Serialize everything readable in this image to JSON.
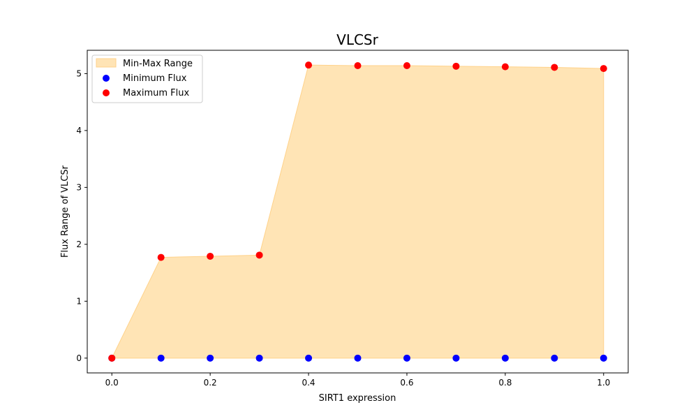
{
  "chart_data": {
    "type": "scatter",
    "title": "VLCSr",
    "xlabel": "SIRT1 expression",
    "ylabel": "Flux Range of VLCSr",
    "x": [
      0.0,
      0.1,
      0.2,
      0.3,
      0.4,
      0.5,
      0.6,
      0.7,
      0.8,
      0.9,
      1.0
    ],
    "series": [
      {
        "name": "Minimum Flux",
        "color": "#0000ff",
        "values": [
          0,
          0,
          0,
          0,
          0,
          0,
          0,
          0,
          0,
          0,
          0
        ]
      },
      {
        "name": "Maximum Flux",
        "color": "#ff0000",
        "values": [
          0,
          1.77,
          1.79,
          1.81,
          5.15,
          5.14,
          5.14,
          5.13,
          5.12,
          5.11,
          5.09
        ]
      }
    ],
    "fill": {
      "name": "Min-Max Range",
      "color": "#ffe4b5",
      "edge_color": "#ffd28a"
    },
    "xlim": [
      -0.05,
      1.05
    ],
    "ylim": [
      -0.26,
      5.41
    ],
    "xticks": [
      "0.0",
      "0.2",
      "0.4",
      "0.6",
      "0.8",
      "1.0"
    ],
    "xtick_values": [
      0.0,
      0.2,
      0.4,
      0.6,
      0.8,
      1.0
    ],
    "yticks": [
      "0",
      "1",
      "2",
      "3",
      "4",
      "5"
    ],
    "ytick_values": [
      0,
      1,
      2,
      3,
      4,
      5
    ],
    "grid": false,
    "legend_placement": "top-left"
  }
}
